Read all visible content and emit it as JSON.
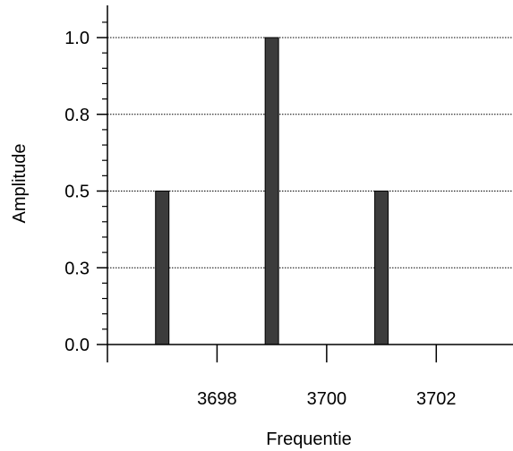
{
  "chart_data": {
    "type": "bar",
    "title": "",
    "xlabel": "Frequentie",
    "ylabel": "Amplitude",
    "x": [
      3697,
      3699,
      3701
    ],
    "values": [
      0.5,
      1.0,
      0.5
    ],
    "xlim": [
      3696,
      3703.4
    ],
    "ylim": [
      0,
      1.0
    ],
    "x_ticks": [
      3698,
      3700,
      3702
    ],
    "x_tick_labels": [
      "3698",
      "3700",
      "3702"
    ],
    "y_ticks": [
      0.0,
      0.25,
      0.5,
      0.75,
      1.0
    ],
    "y_tick_labels": [
      "0.0",
      "0.3",
      "0.5",
      "0.8",
      "1.0"
    ],
    "grid": "horizontal-dotted",
    "bar_color": "#3c3c3c"
  }
}
